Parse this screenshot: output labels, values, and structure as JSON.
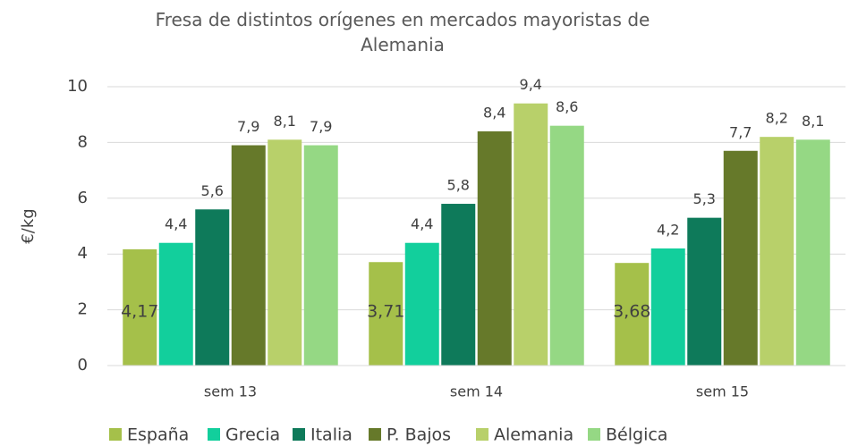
{
  "chart_data": {
    "type": "bar",
    "title": "Fresa de distintos orígenes en mercados mayoristas de Alemania",
    "y_label": "€/kg",
    "categories": [
      "sem 13",
      "sem 14",
      "sem 15"
    ],
    "series": [
      {
        "name": "España",
        "color": "#a5c04a",
        "values": [
          4.17,
          3.71,
          3.68
        ],
        "value_labels": [
          "4,17",
          "3,71",
          "3,68"
        ]
      },
      {
        "name": "Grecia",
        "color": "#12cf9c",
        "values": [
          4.4,
          4.4,
          4.2
        ],
        "value_labels": [
          "4,4",
          "4,4",
          "4,2"
        ]
      },
      {
        "name": "Italia",
        "color": "#0e7a5a",
        "values": [
          5.6,
          5.8,
          5.3
        ],
        "value_labels": [
          "5,6",
          "5,8",
          "5,3"
        ]
      },
      {
        "name": "P. Bajos",
        "color": "#66792a",
        "values": [
          7.9,
          8.4,
          7.7
        ],
        "value_labels": [
          "7,9",
          "8,4",
          "7,7"
        ]
      },
      {
        "name": "Alemania",
        "color": "#b8d06a",
        "values": [
          8.1,
          9.4,
          8.2
        ],
        "value_labels": [
          "8,1",
          "9,4",
          "8,2"
        ]
      },
      {
        "name": "Bélgica",
        "color": "#95d884",
        "values": [
          7.9,
          8.6,
          8.1
        ],
        "value_labels": [
          "7,9",
          "8,6",
          "8,1"
        ]
      }
    ],
    "ylim": [
      0,
      10
    ],
    "yticks": [
      0,
      2,
      4,
      6,
      8,
      10
    ],
    "grid": true,
    "legend": "bottom"
  }
}
